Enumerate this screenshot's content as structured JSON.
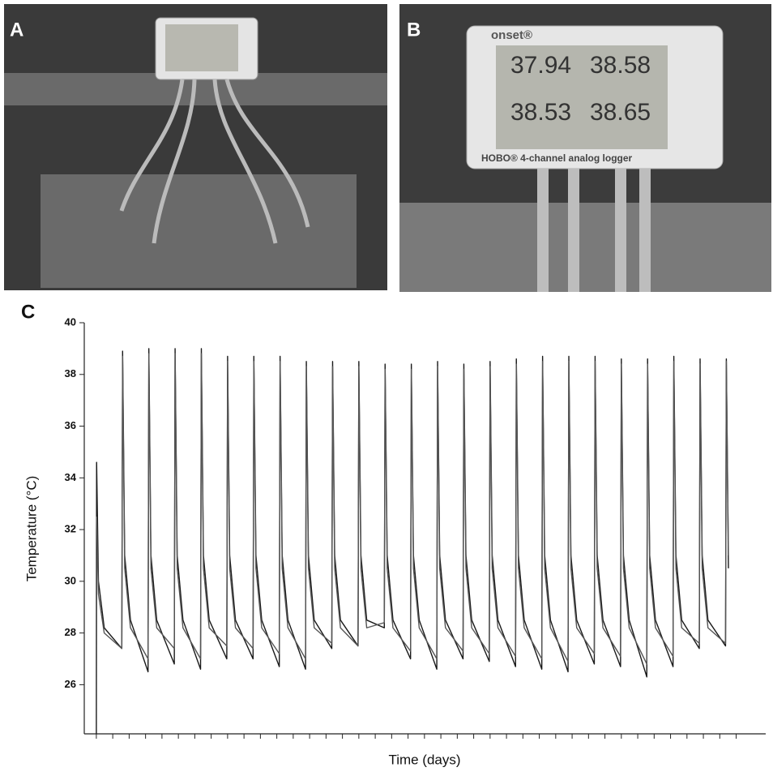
{
  "panels": {
    "a": {
      "label": "A"
    },
    "b": {
      "label": "B",
      "brand": "onset®",
      "readings": [
        "37.94",
        "38.58",
        "38.53",
        "38.65"
      ],
      "caption": "HOBO® 4-channel analog logger"
    },
    "c": {
      "label": "C"
    }
  },
  "chart_data": {
    "type": "line",
    "y_label": "Temperature (°C)",
    "x_label": "Time (days)",
    "xlim": [
      -0.46,
      25.5
    ],
    "xticks": [
      0,
      0.625,
      1.25,
      1.875,
      2.5,
      3.125,
      3.75,
      4.375,
      5,
      5.625,
      6.25,
      6.875,
      7.5,
      8.125,
      8.75,
      9.375,
      10,
      10.625,
      11.25,
      11.875,
      12.5,
      13.125,
      13.75,
      14.375,
      15,
      15.625,
      16.25,
      16.875,
      17.5,
      18.125,
      18.75,
      19.375,
      20,
      20.625,
      21.25,
      21.875,
      22.5,
      23.125,
      23.75,
      24.375
    ],
    "ylim": [
      24.1,
      40
    ],
    "yticks": [
      26,
      28,
      30,
      32,
      34,
      36,
      38,
      40
    ],
    "x": [
      0,
      0.01,
      0.08,
      0.3,
      0.97,
      1,
      1.08,
      1.3,
      1.97,
      2,
      2.08,
      2.3,
      2.97,
      3,
      3.08,
      3.3,
      3.97,
      4,
      4.08,
      4.3,
      4.97,
      5,
      5.08,
      5.3,
      5.97,
      6,
      6.08,
      6.3,
      6.97,
      7,
      7.08,
      7.3,
      7.97,
      8,
      8.08,
      8.3,
      8.97,
      9,
      9.08,
      9.3,
      9.97,
      10,
      10.08,
      10.3,
      10.97,
      11,
      11.08,
      11.3,
      11.97,
      12,
      12.08,
      12.3,
      12.97,
      13,
      13.08,
      13.3,
      13.97,
      14,
      14.08,
      14.3,
      14.97,
      15,
      15.08,
      15.3,
      15.97,
      16,
      16.08,
      16.3,
      16.97,
      17,
      17.08,
      17.3,
      17.97,
      18,
      18.08,
      18.3,
      18.97,
      19,
      19.08,
      19.3,
      19.97,
      20,
      20.08,
      20.3,
      20.97,
      21,
      21.08,
      21.3,
      21.97,
      22,
      22.08,
      22.3,
      22.97,
      23,
      23.08,
      23.3,
      23.97,
      24,
      24.08
    ],
    "series": [
      {
        "color": "#1a1a1a",
        "values": [
          24.1,
          34.6,
          30.0,
          28.2,
          27.4,
          38.9,
          31.0,
          28.5,
          26.5,
          39.0,
          31.0,
          28.5,
          26.8,
          39.0,
          31.0,
          28.5,
          26.6,
          39.0,
          31.0,
          28.5,
          27.0,
          38.7,
          31.0,
          28.5,
          27.0,
          38.7,
          31.0,
          28.5,
          26.7,
          38.7,
          31.0,
          28.5,
          26.6,
          38.5,
          31.0,
          28.5,
          27.4,
          38.5,
          31.0,
          28.5,
          27.5,
          38.5,
          31.0,
          28.5,
          28.2,
          38.4,
          31.0,
          28.5,
          27.0,
          38.4,
          31.0,
          28.5,
          26.6,
          38.5,
          31.0,
          28.5,
          27.0,
          38.4,
          31.0,
          28.5,
          26.9,
          38.5,
          31.0,
          28.5,
          26.7,
          38.6,
          31.0,
          28.5,
          26.6,
          38.7,
          31.0,
          28.5,
          26.5,
          38.7,
          31.0,
          28.5,
          26.8,
          38.7,
          31.0,
          28.5,
          26.7,
          38.6,
          31.0,
          28.5,
          26.3,
          38.6,
          31.0,
          28.5,
          26.7,
          38.7,
          31.0,
          28.5,
          27.4,
          38.6,
          31.0,
          28.5,
          27.5,
          38.6,
          30.5
        ]
      },
      {
        "color": "#555555",
        "values": [
          null,
          32.5,
          29.5,
          28.0,
          27.4,
          38.7,
          30.5,
          28.2,
          27.0,
          38.8,
          30.5,
          28.2,
          27.4,
          38.8,
          30.5,
          28.2,
          27.0,
          38.8,
          30.5,
          28.2,
          27.5,
          38.5,
          30.5,
          28.2,
          27.4,
          38.5,
          30.5,
          28.2,
          27.2,
          38.5,
          30.5,
          28.2,
          27.0,
          38.3,
          30.5,
          28.2,
          27.6,
          38.3,
          30.5,
          28.2,
          27.5,
          38.3,
          30.5,
          28.2,
          28.4,
          38.2,
          30.5,
          28.2,
          27.3,
          38.2,
          30.5,
          28.2,
          27.0,
          38.3,
          30.5,
          28.2,
          27.3,
          38.2,
          30.5,
          28.2,
          27.2,
          38.3,
          30.5,
          28.2,
          27.1,
          38.4,
          30.5,
          28.2,
          27.0,
          38.5,
          30.5,
          28.2,
          26.9,
          38.5,
          30.5,
          28.2,
          27.2,
          38.5,
          30.5,
          28.2,
          27.1,
          38.4,
          30.5,
          28.2,
          26.8,
          38.4,
          30.5,
          28.2,
          27.1,
          38.5,
          30.5,
          28.2,
          27.6,
          38.4,
          30.5,
          28.2,
          27.6,
          38.5,
          31.0
        ]
      }
    ]
  }
}
